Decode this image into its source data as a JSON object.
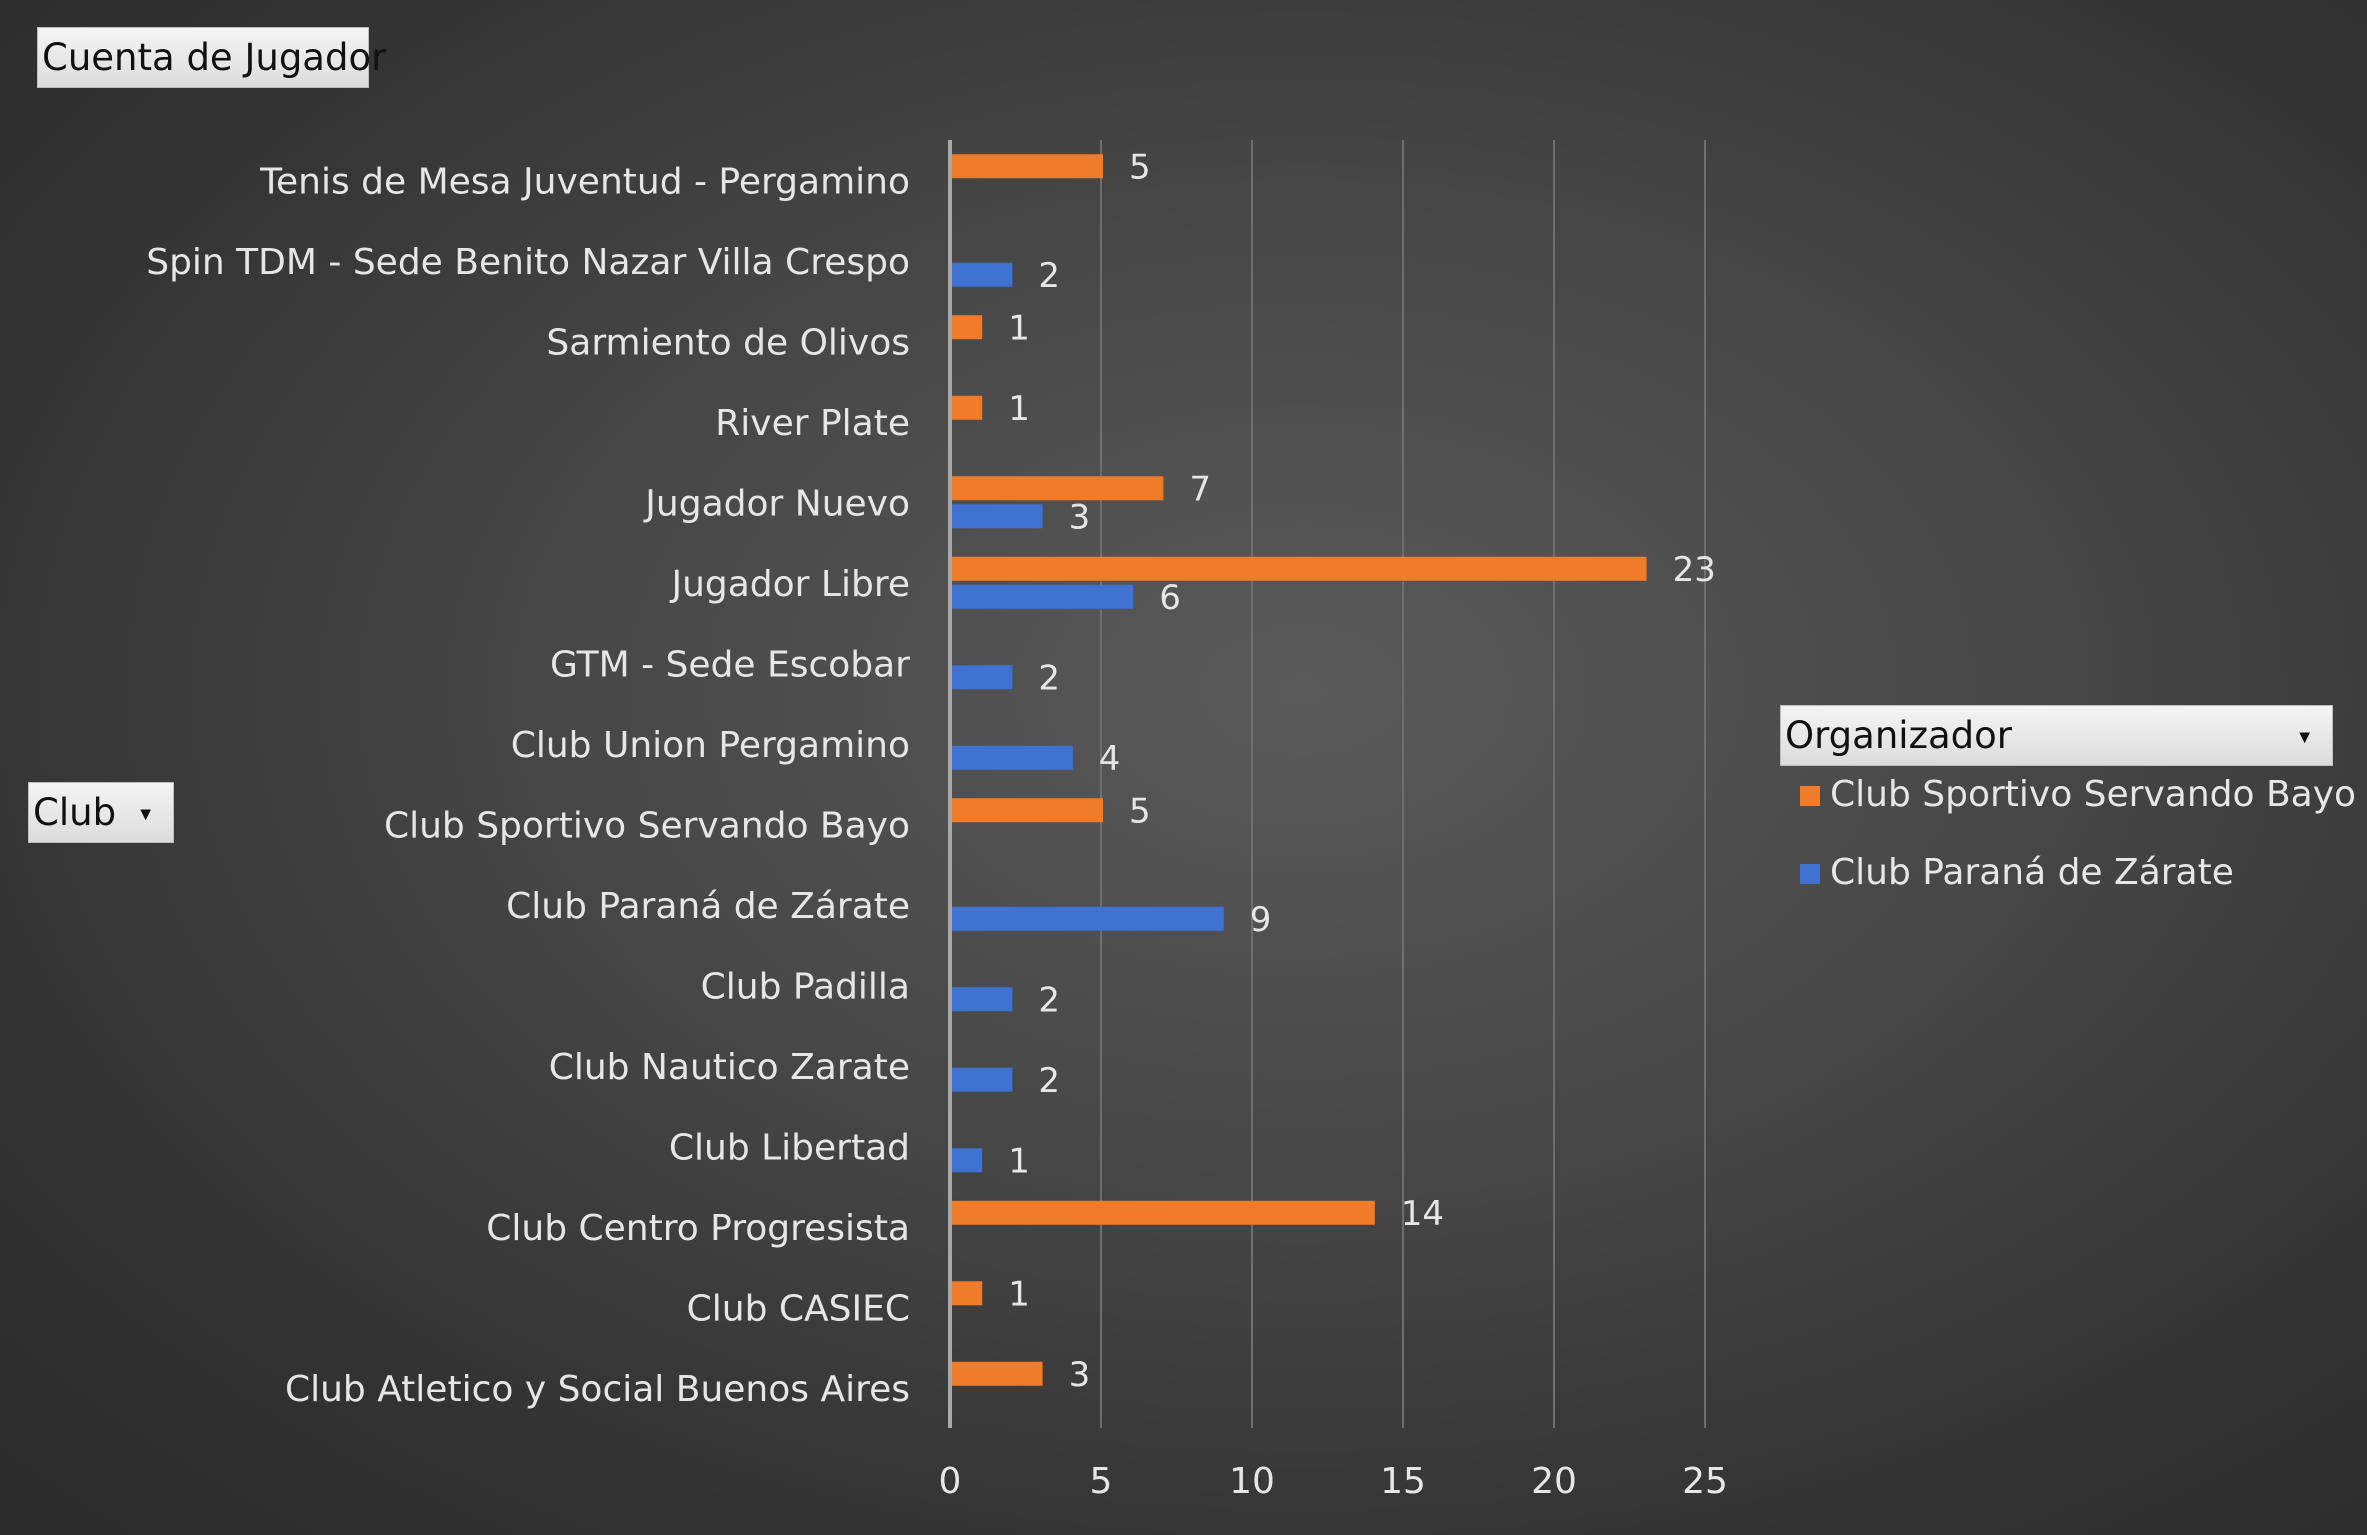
{
  "field_buttons": {
    "values_field": "Cuenta de Jugador",
    "axis_field": "Club",
    "legend_field": "Organizador"
  },
  "icons": {
    "filter_dropdown": "dropdown-arrow-icon"
  },
  "colors": {
    "series_orange": "#f07c2a",
    "series_blue": "#3f72d1",
    "text": "#e6e6e6",
    "grid": "#6f6f6f",
    "axis": "#a8a8a8"
  },
  "chart_data": {
    "type": "bar",
    "orientation": "horizontal",
    "categories": [
      "Tenis de Mesa Juventud - Pergamino",
      "Spin TDM - Sede Benito Nazar Villa Crespo",
      "Sarmiento de Olivos",
      "River Plate",
      "Jugador Nuevo",
      "Jugador Libre",
      "GTM - Sede Escobar",
      "Club Union Pergamino",
      "Club Sportivo Servando Bayo",
      "Club Paraná de Zárate",
      "Club Padilla",
      "Club Nautico Zarate",
      "Club Libertad",
      "Club Centro Progresista",
      "Club CASIEC",
      "Club Atletico y Social Buenos Aires"
    ],
    "series": [
      {
        "name": "Club Sportivo Servando Bayo",
        "color": "#f07c2a",
        "values": [
          5,
          null,
          1,
          1,
          7,
          23,
          null,
          null,
          5,
          null,
          null,
          null,
          null,
          14,
          1,
          3
        ]
      },
      {
        "name": "Club Paraná de Zárate",
        "color": "#3f72d1",
        "values": [
          null,
          2,
          null,
          null,
          3,
          6,
          2,
          4,
          null,
          9,
          2,
          2,
          1,
          null,
          null,
          null
        ]
      }
    ],
    "xlim": [
      0,
      25
    ],
    "x_ticks": [
      0,
      5,
      10,
      15,
      20,
      25
    ],
    "grid": true,
    "legend_position": "right",
    "data_labels": true
  }
}
